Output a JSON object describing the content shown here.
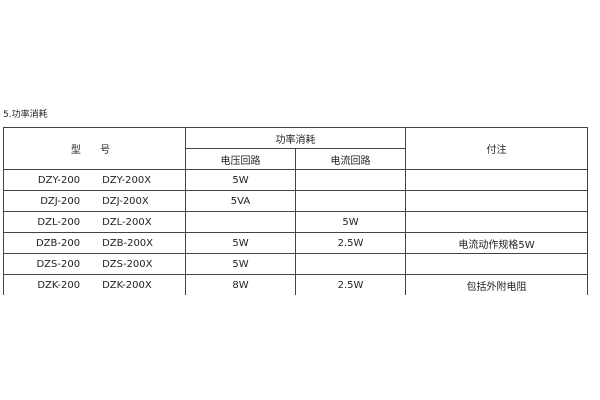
{
  "section_title": "5.功率消耗",
  "table": {
    "headers": {
      "model": "型 号",
      "power": "功率消耗",
      "voltage": "电压回路",
      "current": "电流回路",
      "note": "付注"
    },
    "rows": [
      {
        "model_a": "DZY-200",
        "model_b": "DZY-200X",
        "voltage": "5W",
        "current": "",
        "note": ""
      },
      {
        "model_a": "DZJ-200",
        "model_b": "DZJ-200X",
        "voltage": "5VA",
        "current": "",
        "note": ""
      },
      {
        "model_a": "DZL-200",
        "model_b": "DZL-200X",
        "voltage": "",
        "current": "5W",
        "note": ""
      },
      {
        "model_a": "DZB-200",
        "model_b": "DZB-200X",
        "voltage": "5W",
        "current": "2.5W",
        "note": "电流动作规格5W"
      },
      {
        "model_a": "DZS-200",
        "model_b": "DZS-200X",
        "voltage": "5W",
        "current": "",
        "note": ""
      },
      {
        "model_a": "DZK-200",
        "model_b": "DZK-200X",
        "voltage": "8W",
        "current": "2.5W",
        "note": "包括外附电阻"
      }
    ]
  }
}
